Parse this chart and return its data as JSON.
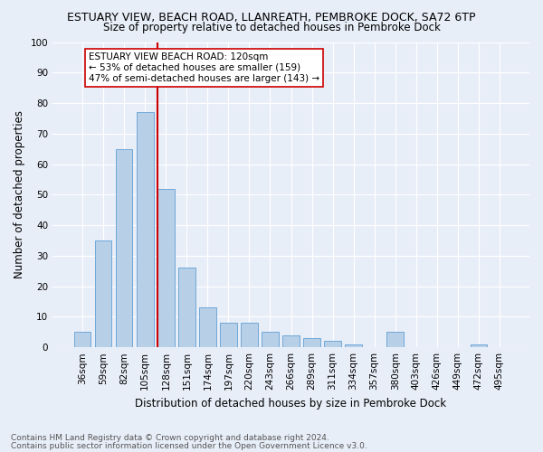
{
  "title": "ESTUARY VIEW, BEACH ROAD, LLANREATH, PEMBROKE DOCK, SA72 6TP",
  "subtitle": "Size of property relative to detached houses in Pembroke Dock",
  "xlabel": "Distribution of detached houses by size in Pembroke Dock",
  "ylabel": "Number of detached properties",
  "categories": [
    "36sqm",
    "59sqm",
    "82sqm",
    "105sqm",
    "128sqm",
    "151sqm",
    "174sqm",
    "197sqm",
    "220sqm",
    "243sqm",
    "266sqm",
    "289sqm",
    "311sqm",
    "334sqm",
    "357sqm",
    "380sqm",
    "403sqm",
    "426sqm",
    "449sqm",
    "472sqm",
    "495sqm"
  ],
  "values": [
    5,
    35,
    65,
    77,
    52,
    26,
    13,
    8,
    8,
    5,
    4,
    3,
    2,
    1,
    0,
    5,
    0,
    0,
    0,
    1,
    0
  ],
  "bar_color": "#b8cfe8",
  "bar_edge_color": "#6fa8d8",
  "background_color": "#e8eef8",
  "grid_color": "#ffffff",
  "property_line_color": "#cc0000",
  "annotation_text": "ESTUARY VIEW BEACH ROAD: 120sqm\n← 53% of detached houses are smaller (159)\n47% of semi-detached houses are larger (143) →",
  "annotation_box_color": "#ffffff",
  "annotation_box_edge": "#cc0000",
  "footnote1": "Contains HM Land Registry data © Crown copyright and database right 2024.",
  "footnote2": "Contains public sector information licensed under the Open Government Licence v3.0.",
  "ylim": [
    0,
    100
  ],
  "title_fontsize": 9,
  "subtitle_fontsize": 8.5,
  "xlabel_fontsize": 8.5,
  "ylabel_fontsize": 8.5,
  "tick_fontsize": 7.5,
  "annot_fontsize": 7.5,
  "footnote_fontsize": 6.5
}
